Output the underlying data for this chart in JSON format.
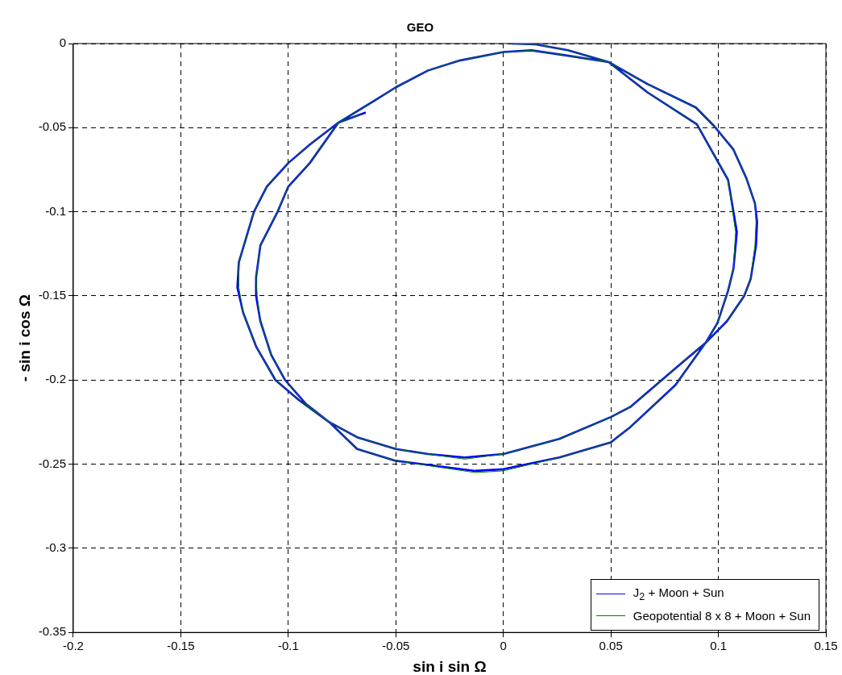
{
  "chart_data": {
    "type": "line",
    "title": "GEO",
    "xlabel": "sin i sin Ω",
    "ylabel": "- sin i cos Ω",
    "xlim": [
      -0.2,
      0.15
    ],
    "ylim": [
      -0.35,
      0
    ],
    "xticks": [
      -0.2,
      -0.15,
      -0.1,
      -0.05,
      0,
      0.05,
      0.1,
      0.15
    ],
    "yticks": [
      -0.35,
      -0.3,
      -0.25,
      -0.2,
      -0.15,
      -0.1,
      -0.05,
      0
    ],
    "grid": true,
    "legend": "bottom right",
    "line_style": "solid",
    "marker": "none",
    "series": [
      {
        "name": "J$_{2}$ + Moon + Sun",
        "color": "#0000ff",
        "x": [
          0.004,
          0.015,
          0.03,
          0.049,
          0.067,
          0.0895,
          0.098,
          0.107,
          0.113,
          0.117,
          0.118,
          0.1175,
          0.115,
          0.112,
          0.104,
          0.094,
          0.08,
          0.059,
          0.05,
          0.026,
          0,
          -0.018,
          -0.035,
          -0.05,
          -0.068,
          -0.081,
          -0.095,
          -0.106,
          -0.115,
          -0.121,
          -0.1237,
          -0.123,
          -0.116,
          -0.11,
          -0.1,
          -0.09,
          -0.0767,
          -0.06,
          -0.05,
          -0.035,
          -0.02,
          0,
          0.013,
          0.029,
          0.049,
          0.067,
          0.09,
          0.1045,
          0.1086,
          0.107,
          0.1045,
          0.0996,
          0.094,
          0.08,
          0.059,
          0.05,
          0.026,
          0,
          -0.013,
          -0.05,
          -0.068,
          -0.081,
          -0.092,
          -0.1015,
          -0.108,
          -0.113,
          -0.115,
          -0.115,
          -0.113,
          -0.105,
          -0.1,
          -0.09,
          -0.0767,
          -0.064
        ],
        "values": [
          0,
          -0.0005,
          -0.004,
          -0.011,
          -0.024,
          -0.038,
          -0.049,
          -0.063,
          -0.08,
          -0.095,
          -0.106,
          -0.12,
          -0.14,
          -0.15,
          -0.165,
          -0.178,
          -0.193,
          -0.216,
          -0.222,
          -0.235,
          -0.244,
          -0.246,
          -0.244,
          -0.241,
          -0.234,
          -0.225,
          -0.212,
          -0.2,
          -0.18,
          -0.16,
          -0.145,
          -0.13,
          -0.1,
          -0.085,
          -0.071,
          -0.06,
          -0.047,
          -0.034,
          -0.026,
          -0.016,
          -0.01,
          -0.005,
          -0.004,
          -0.007,
          -0.011,
          -0.029,
          -0.048,
          -0.081,
          -0.112,
          -0.134,
          -0.147,
          -0.166,
          -0.178,
          -0.203,
          -0.228,
          -0.237,
          -0.246,
          -0.253,
          -0.254,
          -0.248,
          -0.241,
          -0.225,
          -0.214,
          -0.2,
          -0.185,
          -0.165,
          -0.15,
          -0.139,
          -0.12,
          -0.1,
          -0.085,
          -0.071,
          -0.047,
          -0.041
        ]
      },
      {
        "name": "Geopotential 8 x 8 + Moon + Sun",
        "color": "#008000",
        "x": [
          0.005,
          0.015,
          0.03,
          0.049,
          0.067,
          0.0895,
          0.098,
          0.107,
          0.113,
          0.117,
          0.1175,
          0.117,
          0.115,
          0.112,
          0.104,
          0.094,
          0.08,
          0.059,
          0.05,
          0.026,
          0,
          -0.018,
          -0.035,
          -0.05,
          -0.068,
          -0.081,
          -0.095,
          -0.106,
          -0.115,
          -0.121,
          -0.123,
          -0.123,
          -0.116,
          -0.11,
          -0.1,
          -0.09,
          -0.0767,
          -0.06,
          -0.05,
          -0.035,
          -0.02,
          0,
          0.013,
          0.029,
          0.049,
          0.067,
          0.09,
          0.1045,
          0.108,
          0.107,
          0.1045,
          0.0996,
          0.094,
          0.08,
          0.059,
          0.05,
          0.026,
          0,
          -0.013,
          -0.05,
          -0.068,
          -0.081,
          -0.092,
          -0.1015,
          -0.108,
          -0.113,
          -0.1145,
          -0.115,
          -0.113,
          -0.105,
          -0.1,
          -0.09,
          -0.0767,
          -0.066
        ],
        "values": [
          0,
          -0.0005,
          -0.004,
          -0.011,
          -0.024,
          -0.038,
          -0.049,
          -0.063,
          -0.08,
          -0.095,
          -0.106,
          -0.12,
          -0.14,
          -0.15,
          -0.165,
          -0.178,
          -0.193,
          -0.216,
          -0.222,
          -0.235,
          -0.244,
          -0.247,
          -0.244,
          -0.241,
          -0.234,
          -0.225,
          -0.212,
          -0.2,
          -0.18,
          -0.16,
          -0.145,
          -0.13,
          -0.1,
          -0.085,
          -0.071,
          -0.06,
          -0.047,
          -0.034,
          -0.026,
          -0.016,
          -0.01,
          -0.005,
          -0.004,
          -0.007,
          -0.011,
          -0.029,
          -0.048,
          -0.081,
          -0.112,
          -0.134,
          -0.147,
          -0.166,
          -0.178,
          -0.203,
          -0.228,
          -0.237,
          -0.246,
          -0.254,
          -0.255,
          -0.248,
          -0.241,
          -0.225,
          -0.214,
          -0.2,
          -0.185,
          -0.165,
          -0.15,
          -0.139,
          -0.12,
          -0.1,
          -0.085,
          -0.071,
          -0.047,
          -0.042
        ]
      }
    ]
  }
}
